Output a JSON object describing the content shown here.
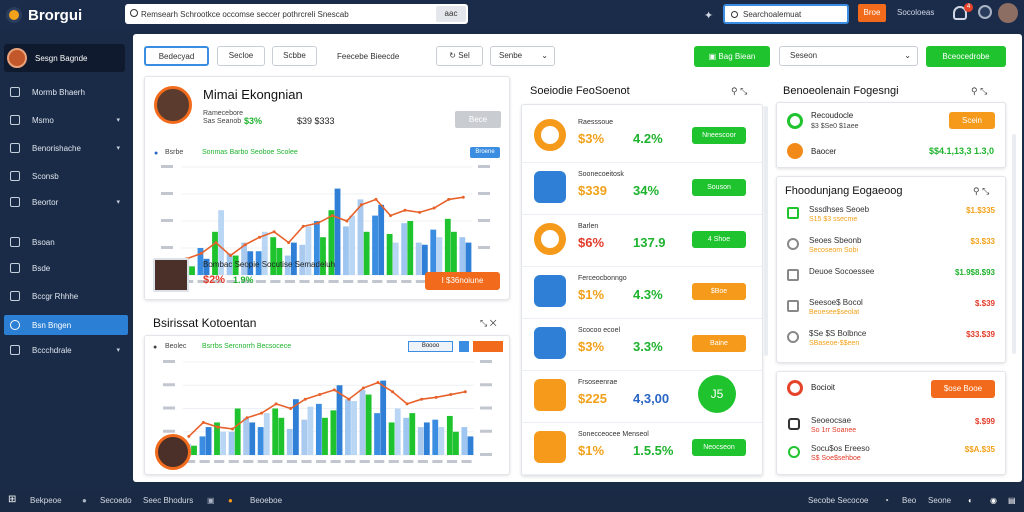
{
  "app": {
    "title": "Brorgui",
    "logo": "logo-icon"
  },
  "topbar": {
    "search_placeholder": "Remsearh Schrootkce occomse seccer pothrcreli Snescab",
    "search_btn": "aac",
    "search2_text": "Searchoalemuat",
    "orange_btn": "Broe",
    "link_text": "Socoloeas",
    "bell_badge": "4"
  },
  "sidebar": {
    "user_name": "Sesgn Bagnde",
    "items": [
      {
        "label": "Mormb Bhaerh",
        "icon": "dashboard-icon",
        "chevron": false
      },
      {
        "label": "Msmo",
        "icon": "tools-icon",
        "chevron": true
      },
      {
        "label": "Benorishache",
        "icon": "folder-icon",
        "chevron": true
      },
      {
        "label": "Sconsb",
        "icon": "box-icon",
        "chevron": false
      },
      {
        "label": "Beortor",
        "icon": "settings-icon",
        "chevron": true
      },
      {
        "label": "Bsoan",
        "icon": "chart-icon",
        "chevron": false
      },
      {
        "label": "Bsde",
        "icon": "grid-icon",
        "chevron": false
      },
      {
        "label": "Bccgr Rhhhe",
        "icon": "doc-icon",
        "chevron": false
      },
      {
        "label": "Bsn Bngen",
        "icon": "target-icon",
        "chevron": false,
        "active": true
      },
      {
        "label": "Bccchdrale",
        "icon": "user-icon",
        "chevron": true
      }
    ]
  },
  "filters": {
    "f1": "Bedecyad",
    "f2": "Secloe",
    "f3": "Scbbe",
    "f4": "Feecebe Bieecde",
    "f5": "Sel",
    "f6": "Senbe",
    "green1": "Bag Biean",
    "select1": "Seseon",
    "green2": "Bceocedrobe"
  },
  "profile_card": {
    "name": "Mimai Ekongnian",
    "sub": "Ramecebore",
    "meta": "Sas Seanob",
    "pct1": "$3%",
    "pct2": "$39 $333",
    "btn": "Bece",
    "chart_caption": "Bsrbe",
    "chart_legend": "Sonmas Barbo Seoboe Scolee",
    "chart_tag": "Broene",
    "person2_line": "Bombac Seopie Socutise Semadeluh",
    "person2_pct": "$2%",
    "person2_val": "1.9%",
    "person2_btn": "I $36noiune"
  },
  "bottom_chart": {
    "title": "Bsirissat Kotoentan",
    "legend": "Bsrrbs Sercnorrh Becsocece",
    "tag1": "Boooo",
    "caption": "Beolec"
  },
  "middle": {
    "title": "Soeiodie FeoSoenot",
    "rows": [
      {
        "label": "Raesssoue",
        "pct": "$3%",
        "val": "4.2%",
        "btn": "Nneescoor",
        "btn_color": "green",
        "icon": "ring-icon"
      },
      {
        "label": "Soonecoeitosk",
        "pct": "$339",
        "val": "34%",
        "btn": "Souson",
        "btn_color": "green",
        "icon": "mail-check-icon"
      },
      {
        "label": "Barlen",
        "pct": "$6%",
        "val": "137.9",
        "btn": "4 Shoe",
        "btn_color": "green",
        "icon": "donut-icon"
      },
      {
        "label": "Ferceocbonngo",
        "pct": "$1%",
        "val": "4.3%",
        "btn": "$Boe",
        "btn_color": "orange",
        "icon": "envelope-icon"
      },
      {
        "label": "Scocoo ecoel",
        "pct": "$3%",
        "val": "3.3%",
        "btn": "Baine",
        "btn_color": "orange",
        "icon": "display-icon"
      },
      {
        "label": "Frsoseenrae",
        "pct": "$225",
        "val": "4,3,00",
        "btn": "J5",
        "btn_color": "circle",
        "icon": "chat-icon"
      },
      {
        "label": "Sonecceocee Menseol",
        "pct": "$1%",
        "val": "1.5.5%",
        "btn": "Neocseon",
        "btn_color": "green",
        "icon": "stack-icon"
      }
    ]
  },
  "right_top": {
    "title": "Benoeolenain Fogesngi",
    "row1_label": "Recoudocle",
    "row1_sub": "$3 $Se0 $1aee",
    "row1_btn": "Scein",
    "row2_label": "Baocer",
    "row2_val": "$$4.1,13,3 1.3,0"
  },
  "right_list": {
    "title": "Fhoodunjang Eogaeoog",
    "rows": [
      {
        "label": "Sssdhses Seoeb",
        "sub": "S15 $3 ssecme",
        "val": "$1.$335",
        "color": "#f2a11a",
        "icon": "check-icon"
      },
      {
        "label": "Seoes Sbeonb",
        "sub": "Secoseom Sobi",
        "val": "$3.$33",
        "color": "#f2a11a",
        "icon": "pie-icon"
      },
      {
        "label": "Deuoe Socoessee",
        "sub": "",
        "val": "$1.9$8.$93",
        "color": "#1eb32e",
        "icon": "chart-icon"
      },
      {
        "label": "Seesoe$ Bocol",
        "sub": "Beoesee$seolat",
        "val": "$.$39",
        "color": "#e23b2a",
        "icon": "grid-icon"
      },
      {
        "label": "$Se $S Bolbnce",
        "sub": "SBaseoe-$$een",
        "val": "$33.$39",
        "color": "#e23b2a",
        "icon": "gear-icon"
      }
    ]
  },
  "right_bottom": {
    "label": "Bocioit",
    "btn": "$ose Booe",
    "rows": [
      {
        "label": "Seoeocsae",
        "sub": "So 1rr Soanee",
        "val": "$.$99",
        "color": "#e23b2a",
        "icon": "lock-icon"
      },
      {
        "label": "Socu$os Ereeso",
        "sub": "S$ Soe$sehboe",
        "val": "$$A.$35",
        "color": "#f2a11a",
        "icon": "shield-icon"
      }
    ]
  },
  "taskbar": {
    "items": [
      "Bekpeoe",
      "Secoedo",
      "Seec Bhodurs",
      "Beoeboe"
    ],
    "right_items": [
      "Secobe Secocoe",
      "Beo",
      "Seone"
    ]
  },
  "chart_data": [
    {
      "type": "bar",
      "title": "",
      "categories": [
        "1",
        "2",
        "3",
        "4",
        "5",
        "6",
        "7",
        "8",
        "9",
        "10",
        "11",
        "12",
        "13",
        "14",
        "15",
        "16",
        "17",
        "18",
        "19",
        "20"
      ],
      "series": [
        {
          "values": [
            10,
            25,
            40,
            20,
            30,
            22,
            35,
            18,
            28,
            50,
            60,
            45,
            70,
            55,
            38,
            48,
            30,
            42,
            52,
            35
          ]
        },
        {
          "values": [
            8,
            15,
            60,
            18,
            22,
            40,
            25,
            30,
            45,
            35,
            80,
            55,
            40,
            65,
            30,
            50,
            28,
            35,
            40,
            30
          ]
        }
      ],
      "line": [
        15,
        20,
        30,
        18,
        28,
        35,
        40,
        30,
        45,
        48,
        55,
        50,
        65,
        70,
        55,
        60,
        58,
        62,
        70,
        72
      ]
    },
    {
      "type": "bar",
      "title": "",
      "categories": [
        "1",
        "2",
        "3",
        "4",
        "5",
        "6",
        "7",
        "8",
        "9",
        "10",
        "11",
        "12",
        "13",
        "14",
        "15",
        "16",
        "17",
        "18",
        "19",
        "20"
      ],
      "series": [
        {
          "values": [
            12,
            20,
            35,
            25,
            40,
            30,
            50,
            28,
            38,
            55,
            48,
            60,
            70,
            45,
            35,
            40,
            30,
            38,
            42,
            30
          ]
        },
        {
          "values": [
            10,
            30,
            25,
            50,
            35,
            45,
            40,
            60,
            52,
            40,
            75,
            58,
            65,
            80,
            50,
            45,
            35,
            30,
            25,
            20
          ]
        }
      ],
      "line": [
        20,
        35,
        30,
        28,
        40,
        45,
        55,
        50,
        60,
        65,
        70,
        60,
        72,
        78,
        68,
        55,
        60,
        62,
        65,
        68
      ]
    }
  ]
}
